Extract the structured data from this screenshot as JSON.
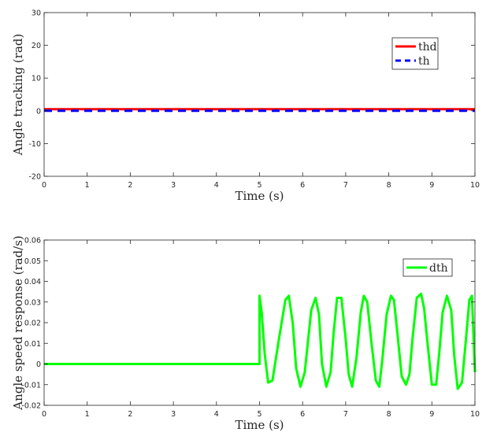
{
  "chart_data": [
    {
      "type": "line",
      "xlabel": "Time (s)",
      "ylabel": "Angle tracking (rad)",
      "xlim": [
        0,
        10
      ],
      "ylim": [
        -20,
        30
      ],
      "xticks": [
        0,
        1,
        2,
        3,
        4,
        5,
        6,
        7,
        8,
        9,
        10
      ],
      "yticks": [
        -20,
        -10,
        0,
        10,
        20,
        30
      ],
      "grid": false,
      "legend_position": "top-right",
      "series": [
        {
          "name": "thd",
          "color": "#ff0000",
          "style": "solid",
          "x": [
            0,
            10
          ],
          "y": [
            0.5,
            0.5
          ]
        },
        {
          "name": "th",
          "color": "#0000ff",
          "style": "dashed",
          "x": [
            0,
            10
          ],
          "y": [
            0,
            0
          ]
        }
      ]
    },
    {
      "type": "line",
      "xlabel": "Time (s)",
      "ylabel": "Angle speed response (rad/s)",
      "xlim": [
        0,
        10
      ],
      "ylim": [
        -0.02,
        0.06
      ],
      "xticks": [
        0,
        1,
        2,
        3,
        4,
        5,
        6,
        7,
        8,
        9,
        10
      ],
      "yticks": [
        -0.02,
        -0.01,
        0,
        0.01,
        0.02,
        0.03,
        0.04,
        0.05,
        0.06
      ],
      "ytick_labels": [
        "-0.02",
        "-0.01",
        "0",
        "0.01",
        "0.02",
        "0.03",
        "0.04",
        "0.05",
        "0.06"
      ],
      "grid": false,
      "legend_position": "top-right",
      "series": [
        {
          "name": "dth",
          "color": "#00ff00",
          "style": "solid",
          "x": [
            0,
            5.0,
            5.0,
            5.05,
            5.12,
            5.2,
            5.3,
            5.45,
            5.6,
            5.68,
            5.77,
            5.85,
            5.95,
            6.05,
            6.2,
            6.3,
            6.38,
            6.45,
            6.55,
            6.65,
            6.72,
            6.8,
            6.9,
            7.0,
            7.07,
            7.15,
            7.25,
            7.35,
            7.42,
            7.5,
            7.6,
            7.7,
            7.78,
            7.85,
            7.95,
            8.05,
            8.12,
            8.2,
            8.3,
            8.4,
            8.48,
            8.55,
            8.65,
            8.75,
            8.82,
            8.9,
            9.0,
            9.1,
            9.17,
            9.25,
            9.35,
            9.45,
            9.52,
            9.6,
            9.7,
            9.8,
            9.87,
            9.93,
            10.0
          ],
          "y": [
            0,
            0,
            0.033,
            0.025,
            0.005,
            -0.009,
            -0.008,
            0.012,
            0.031,
            0.033,
            0.02,
            -0.002,
            -0.011,
            -0.004,
            0.026,
            0.032,
            0.024,
            0.0,
            -0.011,
            -0.004,
            0.015,
            0.032,
            0.032,
            0.012,
            -0.005,
            -0.011,
            0.003,
            0.025,
            0.033,
            0.03,
            0.01,
            -0.008,
            -0.011,
            0.002,
            0.024,
            0.033,
            0.031,
            0.015,
            -0.006,
            -0.01,
            -0.005,
            0.012,
            0.032,
            0.034,
            0.027,
            0.01,
            -0.01,
            -0.01,
            0.005,
            0.025,
            0.033,
            0.026,
            0.004,
            -0.012,
            -0.009,
            0.014,
            0.031,
            0.033,
            -0.004
          ]
        }
      ]
    }
  ]
}
